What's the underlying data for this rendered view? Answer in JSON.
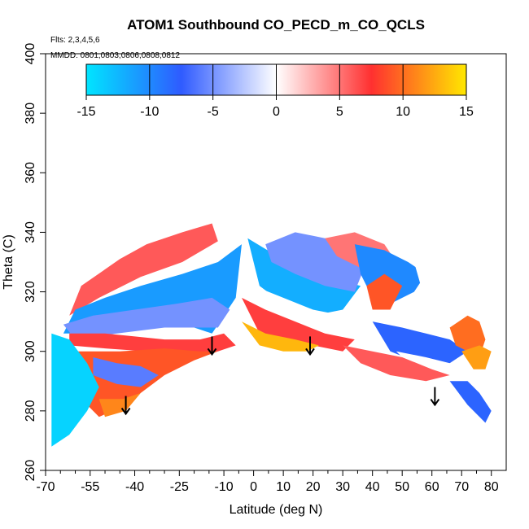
{
  "chart_data": {
    "type": "heatmap",
    "title": "ATOM1 Southbound CO_PECD_m_CO_QCLS",
    "flights_note": "Flts: 2,3,4,5,6",
    "dates_note": "MMDD: 0801,0803,0806,0808,0812",
    "xlabel": "Latitude (deg N)",
    "ylabel": "Theta (C)",
    "xlim": [
      -70,
      85
    ],
    "ylim": [
      260,
      400
    ],
    "x_ticks": [
      -70,
      -55,
      -40,
      -25,
      -10,
      0,
      10,
      20,
      30,
      40,
      50,
      60,
      70,
      80
    ],
    "x_tick_labels": [
      "-70",
      "-55",
      "-40",
      "-25",
      "-10",
      "0",
      "10",
      "20",
      "30",
      "40",
      "50",
      "60",
      "70",
      "80"
    ],
    "y_ticks": [
      260,
      280,
      300,
      320,
      340,
      360,
      380,
      400
    ],
    "y_tick_labels": [
      "260",
      "280",
      "300",
      "320",
      "340",
      "360",
      "380",
      "400"
    ],
    "colorbar": {
      "min": -15,
      "max": 15,
      "ticks": [
        -15,
        -10,
        -5,
        0,
        5,
        10,
        15
      ],
      "tick_labels": [
        "-15",
        "-10",
        "-5",
        "0",
        "5",
        "10",
        "15"
      ],
      "colors": [
        "#00e5ff",
        "#2f5bff",
        "#ffffff",
        "#ff3030",
        "#ffe800"
      ]
    },
    "tropopause_arrows": [
      {
        "lat": -43,
        "theta": 282
      },
      {
        "lat": -14,
        "theta": 302
      },
      {
        "lat": 19,
        "theta": 302
      },
      {
        "lat": 61,
        "theta": 285
      }
    ],
    "field_outline": {
      "lat": [
        -68,
        -68,
        -62,
        -54,
        -45,
        -36,
        -24,
        -14,
        -8,
        0,
        8,
        14,
        22,
        32,
        40,
        48,
        56,
        64,
        70,
        75,
        78,
        80,
        78,
        73,
        66,
        58,
        48,
        38,
        28,
        22,
        18,
        10,
        0,
        -14,
        -20,
        -30,
        -38,
        -43,
        -52,
        -58,
        -64,
        -68
      ],
      "theta": [
        268,
        305,
        320,
        331,
        338,
        341,
        343,
        345,
        348,
        347,
        344,
        347,
        346,
        343,
        340,
        336,
        333,
        330,
        326,
        318,
        312,
        306,
        300,
        294,
        291,
        291,
        293,
        293,
        296,
        298,
        300,
        301,
        301,
        300,
        298,
        292,
        286,
        280,
        274,
        272,
        270,
        268
      ]
    },
    "regions": [
      {
        "value": 0.0,
        "lat": [
          -68,
          -58,
          -45,
          -36,
          -24,
          -14,
          -8,
          0,
          -12,
          -24,
          -38,
          -52,
          -62,
          -68
        ],
        "theta": [
          305,
          320,
          331,
          334,
          338,
          341,
          345,
          340,
          330,
          326,
          322,
          316,
          312,
          308
        ]
      },
      {
        "value": 6.0,
        "lat": [
          -58,
          -45,
          -36,
          -24,
          -14,
          -12,
          -24,
          -38,
          -52,
          -62
        ],
        "theta": [
          322,
          331,
          336,
          340,
          343,
          337,
          330,
          325,
          318,
          312
        ]
      },
      {
        "value": -11.0,
        "lat": [
          -60,
          -50,
          -38,
          -24,
          -12,
          -4,
          -6,
          -14,
          -26,
          -40,
          -54,
          -64
        ],
        "theta": [
          314,
          318,
          322,
          326,
          330,
          336,
          318,
          306,
          310,
          308,
          306,
          306
        ]
      },
      {
        "value": -5.0,
        "lat": [
          -64,
          -54,
          -40,
          -26,
          -14,
          -8,
          -12,
          -30,
          -46,
          -60
        ],
        "theta": [
          309,
          312,
          314,
          316,
          318,
          314,
          308,
          308,
          306,
          304
        ]
      },
      {
        "value": 7.0,
        "lat": [
          -62,
          -50,
          -40,
          -30,
          -18,
          -10,
          -6,
          -12,
          -24,
          -36,
          -50,
          -62
        ],
        "theta": [
          306,
          306,
          305,
          304,
          304,
          306,
          302,
          300,
          299,
          300,
          301,
          302
        ]
      },
      {
        "value": 9.0,
        "lat": [
          -60,
          -45,
          -30,
          -18,
          -12,
          -20,
          -30,
          -38,
          -45,
          -52,
          -58
        ],
        "theta": [
          300,
          300,
          301,
          300,
          300,
          297,
          292,
          286,
          281,
          278,
          284
        ]
      },
      {
        "value": -6.0,
        "lat": [
          -54,
          -46,
          -38,
          -32,
          -38,
          -46,
          -54
        ],
        "theta": [
          298,
          296,
          295,
          292,
          288,
          289,
          292
        ]
      },
      {
        "value": -14.0,
        "lat": [
          -68,
          -62,
          -56,
          -52,
          -56,
          -62,
          -68
        ],
        "theta": [
          306,
          304,
          296,
          288,
          280,
          272,
          268
        ]
      },
      {
        "value": 11.0,
        "lat": [
          -52,
          -44,
          -38,
          -43,
          -50
        ],
        "theta": [
          284,
          284,
          286,
          280,
          278
        ]
      },
      {
        "value": 0.0,
        "lat": [
          -4,
          6,
          14,
          22,
          28,
          22,
          12,
          2,
          -2
        ],
        "theta": [
          346,
          344,
          346,
          343,
          338,
          332,
          335,
          338,
          341
        ]
      },
      {
        "value": -12.0,
        "lat": [
          -2,
          8,
          18,
          28,
          36,
          30,
          20,
          10,
          2
        ],
        "theta": [
          338,
          332,
          328,
          324,
          322,
          314,
          312,
          316,
          322
        ]
      },
      {
        "value": -5.0,
        "lat": [
          4,
          14,
          24,
          32,
          38,
          34,
          24,
          14,
          6
        ],
        "theta": [
          336,
          340,
          338,
          336,
          330,
          320,
          322,
          326,
          330
        ]
      },
      {
        "value": 0.0,
        "lat": [
          0,
          10,
          20,
          30,
          38,
          34,
          26,
          14,
          4
        ],
        "theta": [
          322,
          318,
          314,
          312,
          308,
          304,
          306,
          310,
          314
        ]
      },
      {
        "value": 7.0,
        "lat": [
          -4,
          4,
          14,
          24,
          34,
          30,
          20,
          10,
          2
        ],
        "theta": [
          318,
          314,
          310,
          306,
          304,
          300,
          302,
          304,
          306
        ]
      },
      {
        "value": 13.0,
        "lat": [
          -4,
          4,
          14,
          22,
          18,
          10,
          2
        ],
        "theta": [
          310,
          306,
          304,
          302,
          300,
          300,
          302
        ]
      },
      {
        "value": 5.0,
        "lat": [
          24,
          34,
          44,
          48,
          44,
          36,
          28
        ],
        "theta": [
          338,
          340,
          336,
          330,
          324,
          328,
          332
        ]
      },
      {
        "value": -10.0,
        "lat": [
          34,
          44,
          52,
          58,
          54,
          46,
          40,
          36
        ],
        "theta": [
          336,
          334,
          330,
          326,
          320,
          316,
          318,
          326
        ]
      },
      {
        "value": 9.0,
        "lat": [
          38,
          44,
          50,
          46,
          40
        ],
        "theta": [
          322,
          326,
          322,
          314,
          314
        ]
      },
      {
        "value": 0.0,
        "lat": [
          54,
          62,
          70,
          76,
          78,
          72,
          64,
          58
        ],
        "theta": [
          330,
          328,
          324,
          316,
          308,
          304,
          306,
          316
        ]
      },
      {
        "value": -8.0,
        "lat": [
          40,
          50,
          58,
          66,
          72,
          66,
          56,
          46
        ],
        "theta": [
          310,
          308,
          306,
          304,
          300,
          296,
          296,
          300
        ]
      },
      {
        "value": 10.0,
        "lat": [
          66,
          72,
          76,
          78,
          76,
          72,
          68
        ],
        "theta": [
          308,
          312,
          310,
          304,
          298,
          300,
          302
        ]
      },
      {
        "value": 0.0,
        "lat": [
          48,
          58,
          66,
          72,
          76,
          72,
          64,
          56
        ],
        "theta": [
          300,
          298,
          296,
          294,
          290,
          286,
          288,
          292
        ]
      },
      {
        "value": 6.0,
        "lat": [
          30,
          40,
          50,
          60,
          66,
          58,
          46,
          36
        ],
        "theta": [
          302,
          300,
          298,
          294,
          292,
          290,
          292,
          296
        ]
      },
      {
        "value": -8.0,
        "lat": [
          66,
          72,
          76,
          80,
          78,
          72
        ],
        "theta": [
          290,
          290,
          286,
          280,
          276,
          282
        ]
      },
      {
        "value": 12.0,
        "lat": [
          70,
          76,
          80,
          78,
          74
        ],
        "theta": [
          300,
          302,
          300,
          294,
          294
        ]
      }
    ]
  }
}
